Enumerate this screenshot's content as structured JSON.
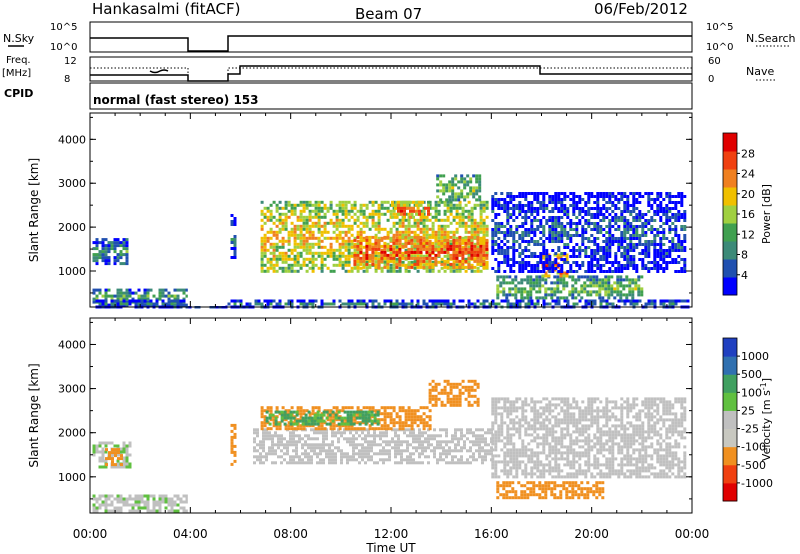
{
  "header": {
    "station": "Hankasalmi (fitACF)",
    "beam": "Beam 07",
    "date": "06/Feb/2012"
  },
  "noise_panel": {
    "left_label": "N.Sky",
    "left_ticks": [
      "10^5",
      "10^0"
    ],
    "right_ticks": [
      "10^5",
      "10^0"
    ],
    "right_label": "N.Search"
  },
  "freq_panel": {
    "left_label_1": "Freq.",
    "left_label_2": "[MHz]",
    "left_ticks": [
      "12",
      "8"
    ],
    "right_ticks": [
      "60",
      "0"
    ],
    "right_label": "Nave"
  },
  "cpid": {
    "label": "CPID",
    "value": "normal (fast stereo) 153"
  },
  "colors": {
    "power_scale": [
      "#0000ff",
      "#2050b0",
      "#3c8a78",
      "#40a050",
      "#a0d040",
      "#f0c000",
      "#f08020",
      "#f04010",
      "#e00000"
    ],
    "velocity_scale": [
      "#e00000",
      "#f04010",
      "#f09020",
      "#c8c8c0",
      "#c0c0c0",
      "#60c040",
      "#40a060",
      "#3070b0",
      "#2040c0"
    ]
  },
  "chart_data": [
    {
      "type": "heatmap",
      "panel": "power",
      "xlabel": "Time UT",
      "ylabel": "Slant Range [km]",
      "x_ticks": [
        "00:00",
        "04:00",
        "08:00",
        "12:00",
        "16:00",
        "20:00",
        "00:00"
      ],
      "x_range_hours": [
        0,
        24
      ],
      "y_ticks": [
        1000,
        2000,
        3000,
        4000
      ],
      "y_range_km": [
        180,
        4600
      ],
      "colorbar": {
        "label": "Power [dB]",
        "ticks": [
          4,
          8,
          12,
          16,
          20,
          24,
          28
        ],
        "range": [
          0,
          32
        ]
      },
      "regions": [
        {
          "t0": 0.1,
          "t1": 1.5,
          "r0": 1200,
          "r1": 1750,
          "v": 10
        },
        {
          "t0": 0.1,
          "t1": 3.9,
          "r0": 250,
          "r1": 600,
          "v": 12
        },
        {
          "t0": 5.6,
          "t1": 5.8,
          "r0": 1300,
          "r1": 2300,
          "v": 8
        },
        {
          "t0": 6.8,
          "t1": 15.8,
          "r0": 1000,
          "r1": 2600,
          "v": 20
        },
        {
          "t0": 10.5,
          "t1": 15.8,
          "r0": 1100,
          "r1": 1800,
          "v": 27
        },
        {
          "t0": 12.0,
          "t1": 13.5,
          "r0": 2200,
          "r1": 2600,
          "v": 24
        },
        {
          "t0": 13.8,
          "t1": 15.5,
          "r0": 2600,
          "r1": 3200,
          "v": 15
        },
        {
          "t0": 16.2,
          "t1": 22.0,
          "r0": 400,
          "r1": 900,
          "v": 14
        },
        {
          "t0": 18.0,
          "t1": 19.0,
          "r0": 900,
          "r1": 1400,
          "v": 26
        },
        {
          "t0": 16.0,
          "t1": 23.7,
          "r0": 1000,
          "r1": 2800,
          "v": 6
        },
        {
          "t0": 0.1,
          "t1": 23.9,
          "r0": 200,
          "r1": 350,
          "v": 8
        }
      ]
    },
    {
      "type": "heatmap",
      "panel": "velocity",
      "xlabel": "Time UT",
      "ylabel": "Slant Range [km]",
      "x_ticks": [
        "00:00",
        "04:00",
        "08:00",
        "12:00",
        "16:00",
        "20:00",
        "00:00"
      ],
      "x_range_hours": [
        0,
        24
      ],
      "y_ticks": [
        1000,
        2000,
        3000,
        4000
      ],
      "y_range_km": [
        180,
        4600
      ],
      "colorbar": {
        "label": "Velocity [m s^-1]",
        "ticks": [
          "1000",
          "500",
          "100",
          "25",
          "-25",
          "-100",
          "-500",
          "-1000"
        ],
        "range": [
          -1250,
          1250
        ]
      },
      "regions": [
        {
          "t0": 0.1,
          "t1": 1.6,
          "r0": 1200,
          "r1": 1800,
          "v": 20
        },
        {
          "t0": 0.6,
          "t1": 1.3,
          "r0": 1300,
          "r1": 1650,
          "v": -300
        },
        {
          "t0": 0.1,
          "t1": 3.9,
          "r0": 250,
          "r1": 600,
          "v": 10
        },
        {
          "t0": 5.6,
          "t1": 5.8,
          "r0": 1300,
          "r1": 2200,
          "v": -150
        },
        {
          "t0": 6.5,
          "t1": 16.0,
          "r0": 1300,
          "r1": 2100,
          "v": 0
        },
        {
          "t0": 6.8,
          "t1": 13.5,
          "r0": 2100,
          "r1": 2600,
          "v": -200
        },
        {
          "t0": 7.0,
          "t1": 11.5,
          "r0": 2200,
          "r1": 2500,
          "v": 120
        },
        {
          "t0": 13.5,
          "t1": 15.5,
          "r0": 2600,
          "r1": 3200,
          "v": -180
        },
        {
          "t0": 16.2,
          "t1": 20.5,
          "r0": 500,
          "r1": 900,
          "v": -350
        },
        {
          "t0": 16.0,
          "t1": 23.7,
          "r0": 1000,
          "r1": 2800,
          "v": 0
        }
      ]
    }
  ]
}
